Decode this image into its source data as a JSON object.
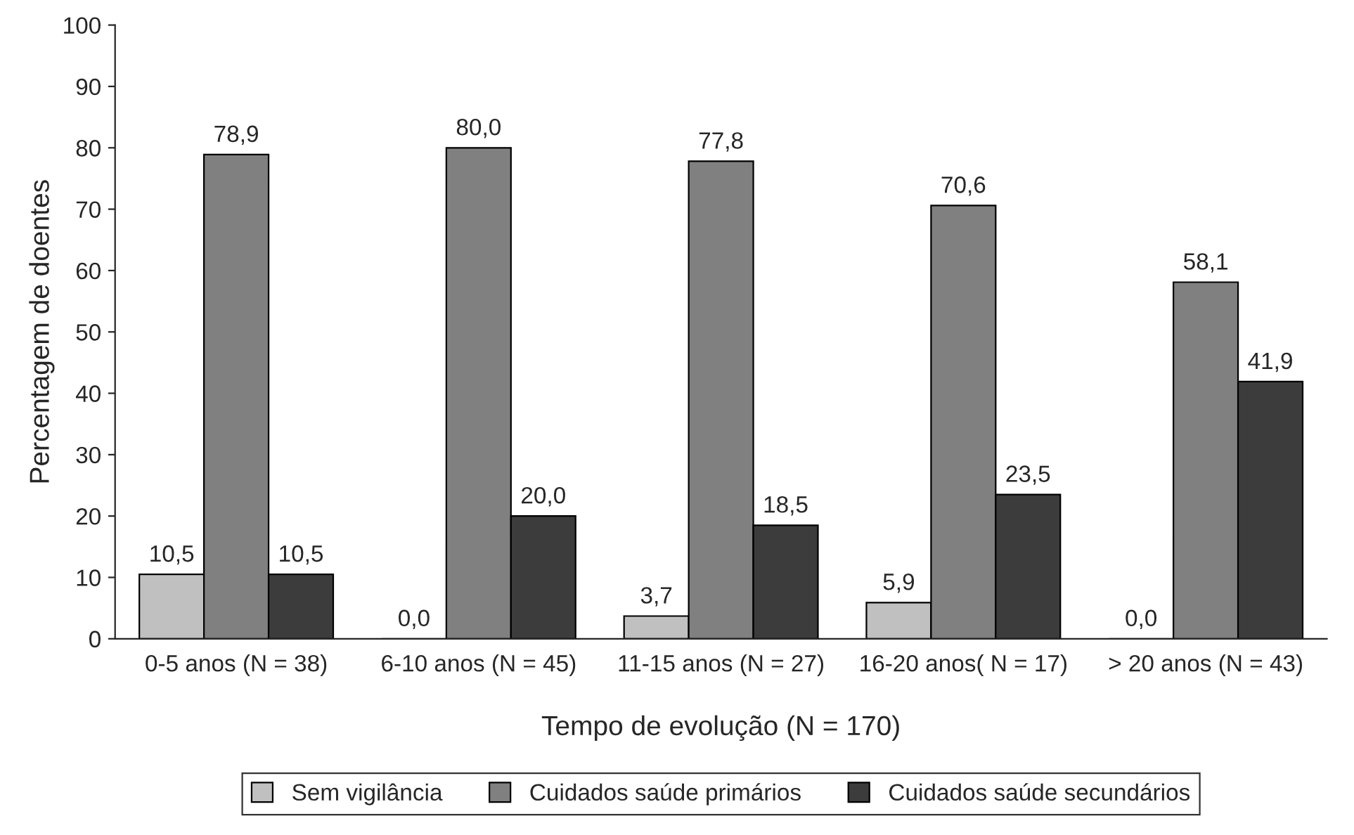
{
  "chart_data": {
    "type": "bar",
    "xlabel": "Tempo de evolução (N = 170)",
    "ylabel": "Percentagem de doentes",
    "categories": [
      "0-5 anos (N = 38)",
      "6-10 anos (N = 45)",
      "11-15 anos (N = 27)",
      "16-20 anos( N = 17)",
      "> 20 anos (N = 43)"
    ],
    "series": [
      {
        "name": "Sem vigilância",
        "color": "#c0c0c0",
        "values": [
          10.5,
          0.0,
          3.7,
          5.9,
          0.0
        ],
        "value_labels": [
          "10,5",
          "0,0",
          "3,7",
          "5,9",
          "0,0"
        ]
      },
      {
        "name": "Cuidados saúde primários",
        "color": "#808080",
        "values": [
          78.9,
          80.0,
          77.8,
          70.6,
          58.1
        ],
        "value_labels": [
          "78,9",
          "80,0",
          "77,8",
          "70,6",
          "58,1"
        ]
      },
      {
        "name": "Cuidados saúde secundários",
        "color": "#3c3c3c",
        "values": [
          10.5,
          20.0,
          18.5,
          23.5,
          41.9
        ],
        "value_labels": [
          "10,5",
          "20,0",
          "18,5",
          "23,5",
          "41,9"
        ]
      }
    ],
    "ylim": [
      0,
      100
    ],
    "yticks": [
      0,
      10,
      20,
      30,
      40,
      50,
      60,
      70,
      80,
      90,
      100
    ],
    "grid": false,
    "legend": "bottom"
  }
}
